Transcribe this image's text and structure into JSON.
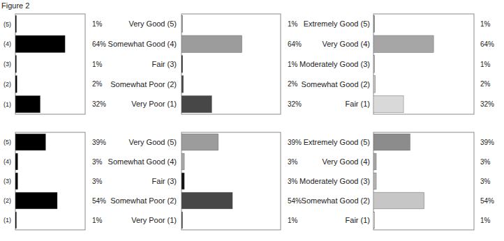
{
  "title": "Figure 2",
  "chart_data": [
    {
      "type": "bar",
      "orientation": "horizontal",
      "tick_labels": "y",
      "data_labels": true,
      "categories": [
        "(5)",
        "(4)",
        "(3)",
        "(2)",
        "(1)"
      ],
      "values": [
        1,
        64,
        1,
        2,
        32
      ],
      "value_labels": [
        "1%",
        "64%",
        "1%",
        "2%",
        "32%"
      ],
      "color": "#000000",
      "xlim": [
        0,
        90
      ]
    },
    {
      "type": "bar",
      "orientation": "horizontal",
      "tick_labels": "y",
      "data_labels": true,
      "categories": [
        "Very Good (5)",
        "Somewhat Good (4)",
        "Fair (3)",
        "Somewhat Poor (2)",
        "Very Poor (1)"
      ],
      "values": [
        1,
        64,
        1,
        2,
        32
      ],
      "value_labels": [
        "1%",
        "64%",
        "1%",
        "2%",
        "32%"
      ],
      "colors": [
        "#9c9c9c",
        "#9c9c9c",
        "#111111",
        "#474747",
        "#474747"
      ],
      "xlim": [
        0,
        105
      ]
    },
    {
      "type": "bar",
      "orientation": "horizontal",
      "tick_labels": "y",
      "data_labels": true,
      "categories": [
        "Extremely Good (5)",
        "Very Good (4)",
        "Moderately Good (3)",
        "Somewhat Good (2)",
        "Fair (1)"
      ],
      "values": [
        1,
        64,
        1,
        2,
        32
      ],
      "value_labels": [
        "1%",
        "64%",
        "1%",
        "2%",
        "32%"
      ],
      "colors": [
        "#8c8c8c",
        "#a6a6a6",
        "#b4b4b4",
        "#c6c6c6",
        "#d9d9d9"
      ],
      "xlim": [
        0,
        107
      ]
    },
    {
      "type": "bar",
      "orientation": "horizontal",
      "tick_labels": "y",
      "data_labels": true,
      "categories": [
        "(5)",
        "(4)",
        "(3)",
        "(2)",
        "(1)"
      ],
      "values": [
        39,
        3,
        3,
        54,
        1
      ],
      "value_labels": [
        "39%",
        "3%",
        "3%",
        "54%",
        "1%"
      ],
      "color": "#000000",
      "xlim": [
        0,
        90
      ]
    },
    {
      "type": "bar",
      "orientation": "horizontal",
      "tick_labels": "y",
      "data_labels": true,
      "categories": [
        "Very Good (5)",
        "Somewhat Good (4)",
        "Fair (3)",
        "Somewhat Poor (2)",
        "Very Poor (1)"
      ],
      "values": [
        39,
        3,
        3,
        54,
        1
      ],
      "value_labels": [
        "39%",
        "3%",
        "3%",
        "54%",
        "1%"
      ],
      "colors": [
        "#9c9c9c",
        "#a8a8a8",
        "#111111",
        "#474747",
        "#474747"
      ],
      "xlim": [
        0,
        105
      ]
    },
    {
      "type": "bar",
      "orientation": "horizontal",
      "tick_labels": "y",
      "data_labels": true,
      "categories": [
        "Extremely Good (5)",
        "Very Good (4)",
        "Moderately Good (3)",
        "Somewhat Good (2)",
        "Fair (1)"
      ],
      "values": [
        39,
        3,
        3,
        54,
        1
      ],
      "value_labels": [
        "39%",
        "3%",
        "3%",
        "54%",
        "1%"
      ],
      "colors": [
        "#8c8c8c",
        "#a6a6a6",
        "#b4b4b4",
        "#c6c6c6",
        "#d9d9d9"
      ],
      "xlim": [
        0,
        107
      ]
    }
  ]
}
